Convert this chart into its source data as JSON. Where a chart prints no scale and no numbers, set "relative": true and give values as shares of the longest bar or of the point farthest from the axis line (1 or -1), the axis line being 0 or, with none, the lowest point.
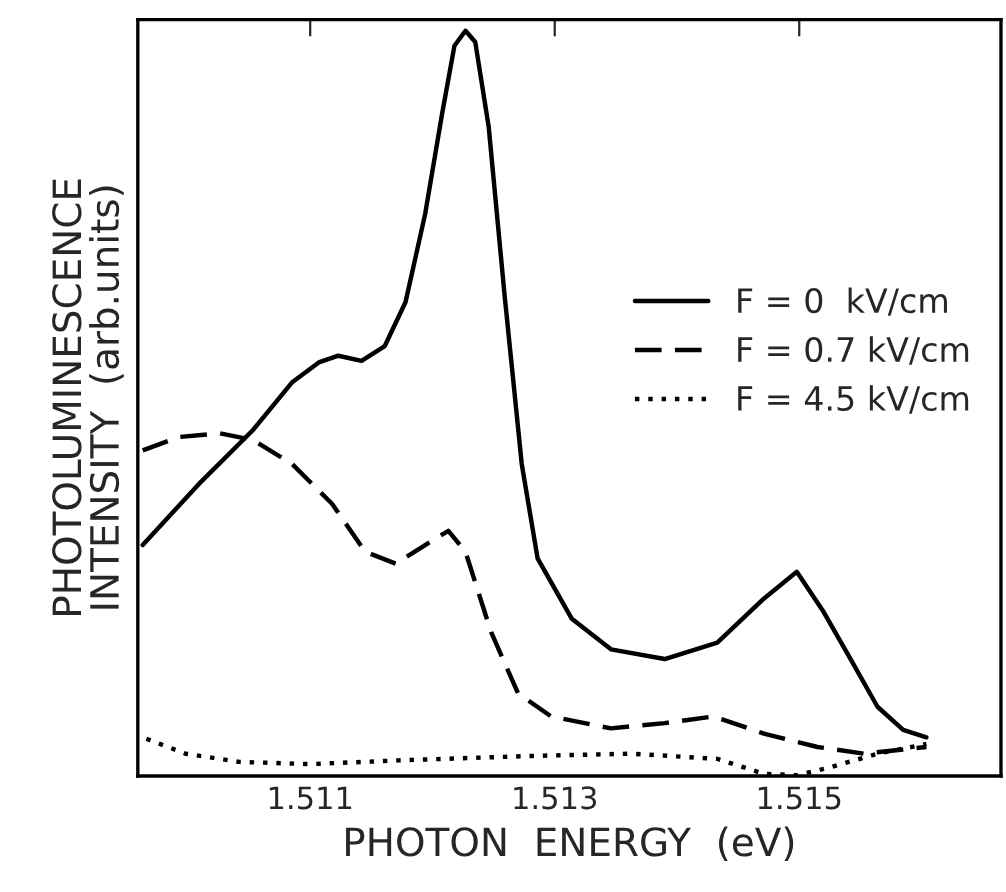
{
  "chart_data": {
    "type": "line",
    "relative": true,
    "xlabel": "PHOTON  ENERGY  (eV)",
    "ylabel": "PHOTOLUMINESCENCE\nINTENSITY  (arb.units)",
    "xlim": [
      1.50959,
      1.51665
    ],
    "xticks": [
      1.511,
      1.513,
      1.515
    ],
    "legend": "right",
    "marker": "none",
    "grid": false,
    "series": [
      {
        "name": "F = 0  kV/cm",
        "color": "#000000",
        "line_style": "solid",
        "x": [
          1.50963,
          1.51009,
          1.51053,
          1.51085,
          1.51107,
          1.51123,
          1.51142,
          1.51161,
          1.51178,
          1.51194,
          1.51208,
          1.51218,
          1.51227,
          1.51235,
          1.51246,
          1.51259,
          1.51273,
          1.51286,
          1.51314,
          1.51346,
          1.5139,
          1.51433,
          1.51471,
          1.51498,
          1.5152,
          1.51542,
          1.51564,
          1.51585,
          1.51604
        ],
        "values": [
          0.31,
          0.392,
          0.464,
          0.528,
          0.555,
          0.564,
          0.557,
          0.577,
          0.636,
          0.754,
          0.89,
          0.98,
          1.0,
          0.985,
          0.871,
          0.645,
          0.419,
          0.292,
          0.211,
          0.17,
          0.157,
          0.179,
          0.238,
          0.274,
          0.22,
          0.157,
          0.093,
          0.062,
          0.052
        ]
      },
      {
        "name": "F = 0.7 kV/cm",
        "color": "#000000",
        "line_style": "dashed",
        "x": [
          1.50963,
          1.50993,
          1.51026,
          1.51053,
          1.51085,
          1.51118,
          1.51145,
          1.5117,
          1.51194,
          1.51213,
          1.51227,
          1.51248,
          1.5127,
          1.51297,
          1.51346,
          1.5139,
          1.5143,
          1.51471,
          1.51515,
          1.51553,
          1.51604
        ],
        "values": [
          0.437,
          0.455,
          0.46,
          0.451,
          0.419,
          0.365,
          0.301,
          0.285,
          0.31,
          0.329,
          0.301,
          0.193,
          0.111,
          0.08,
          0.064,
          0.071,
          0.08,
          0.057,
          0.039,
          0.03,
          0.039
        ]
      },
      {
        "name": "F = 4.5 kV/cm",
        "color": "#000000",
        "line_style": "dotted",
        "x": [
          1.50966,
          1.50998,
          1.51042,
          1.511,
          1.51172,
          1.51281,
          1.51363,
          1.51433,
          1.51471,
          1.51498,
          1.51526,
          1.51564,
          1.51604
        ],
        "values": [
          0.05,
          0.03,
          0.019,
          0.016,
          0.021,
          0.027,
          0.03,
          0.023,
          0.003,
          0.001,
          0.012,
          0.03,
          0.043
        ]
      }
    ]
  }
}
